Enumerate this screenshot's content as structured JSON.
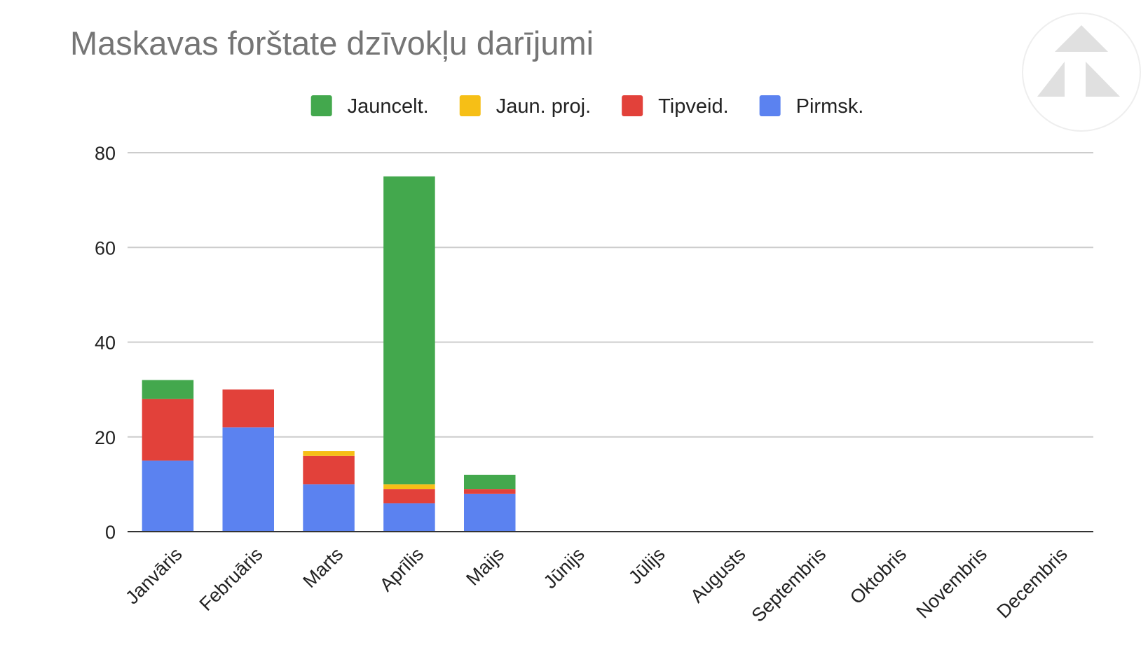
{
  "chart_data": {
    "type": "bar",
    "stacked": true,
    "title": "Maskavas forštate dzīvokļu darījumi",
    "xlabel": "",
    "ylabel": "",
    "ylim": [
      0,
      80
    ],
    "yticks": [
      0,
      20,
      40,
      60,
      80
    ],
    "grid": true,
    "legend_position": "top",
    "categories": [
      "Janvāris",
      "Februāris",
      "Marts",
      "Aprīlis",
      "Maijs",
      "Jūnijs",
      "Jūlijs",
      "Augusts",
      "Septembris",
      "Oktobris",
      "Novembris",
      "Decembris"
    ],
    "series": [
      {
        "name": "Pirmsk.",
        "color": "#5b82f0",
        "values": [
          15,
          22,
          10,
          6,
          8,
          0,
          0,
          0,
          0,
          0,
          0,
          0
        ]
      },
      {
        "name": "Tipveid.",
        "color": "#e2413a",
        "values": [
          13,
          8,
          6,
          3,
          1,
          0,
          0,
          0,
          0,
          0,
          0,
          0
        ]
      },
      {
        "name": "Jaun. proj.",
        "color": "#f6bf16",
        "values": [
          0,
          0,
          1,
          1,
          0,
          0,
          0,
          0,
          0,
          0,
          0,
          0
        ]
      },
      {
        "name": "Jauncelt.",
        "color": "#43a84d",
        "values": [
          4,
          0,
          0,
          65,
          3,
          0,
          0,
          0,
          0,
          0,
          0,
          0
        ]
      }
    ],
    "legend_order": [
      "Jauncelt.",
      "Jaun. proj.",
      "Tipveid.",
      "Pirmsk."
    ]
  },
  "logo": {
    "icon": "triangle-logo-icon",
    "color": "#e0e0e0"
  }
}
